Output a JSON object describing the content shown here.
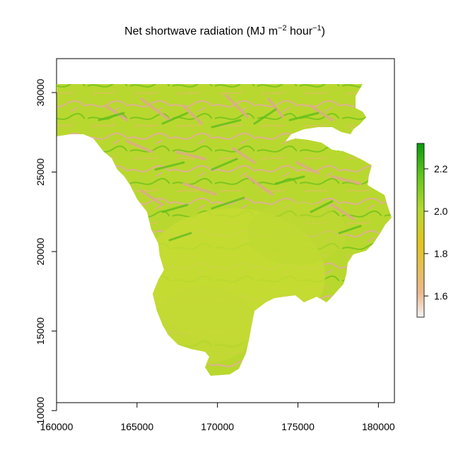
{
  "title": {
    "prefix": "Net shortwave radiation (MJ m",
    "sup1": "−2",
    "middle": " hour",
    "sup2": "−1",
    "suffix": ")"
  },
  "axes": {
    "x_ticks": [
      {
        "value": 160000,
        "label": "160000"
      },
      {
        "value": 165000,
        "label": "165000"
      },
      {
        "value": 170000,
        "label": "170000"
      },
      {
        "value": 175000,
        "label": "175000"
      },
      {
        "value": 180000,
        "label": "180000"
      }
    ],
    "y_ticks": [
      {
        "value": 10000,
        "label": "10000"
      },
      {
        "value": 15000,
        "label": "15000"
      },
      {
        "value": 20000,
        "label": "20000"
      },
      {
        "value": 25000,
        "label": "25000"
      },
      {
        "value": 30000,
        "label": "30000"
      }
    ],
    "xlim": [
      160000,
      181000
    ],
    "ylim": [
      9500,
      32000
    ]
  },
  "legend": {
    "range": [
      1.5,
      2.32
    ],
    "ticks": [
      {
        "value": 1.6,
        "label": "1.6"
      },
      {
        "value": 1.8,
        "label": "1.8"
      },
      {
        "value": 2.0,
        "label": "2.0"
      },
      {
        "value": 2.2,
        "label": "2.2"
      }
    ],
    "colors": [
      "#f2f2f2",
      "#ebb98f",
      "#e2c420",
      "#b5d82e",
      "#5fc41c",
      "#0a9a0e"
    ]
  },
  "colors": {
    "land_base": "#b5d630",
    "land_light": "#c9dc34",
    "shadow": "#dcb38c",
    "ridge": "#7cc61e"
  }
}
